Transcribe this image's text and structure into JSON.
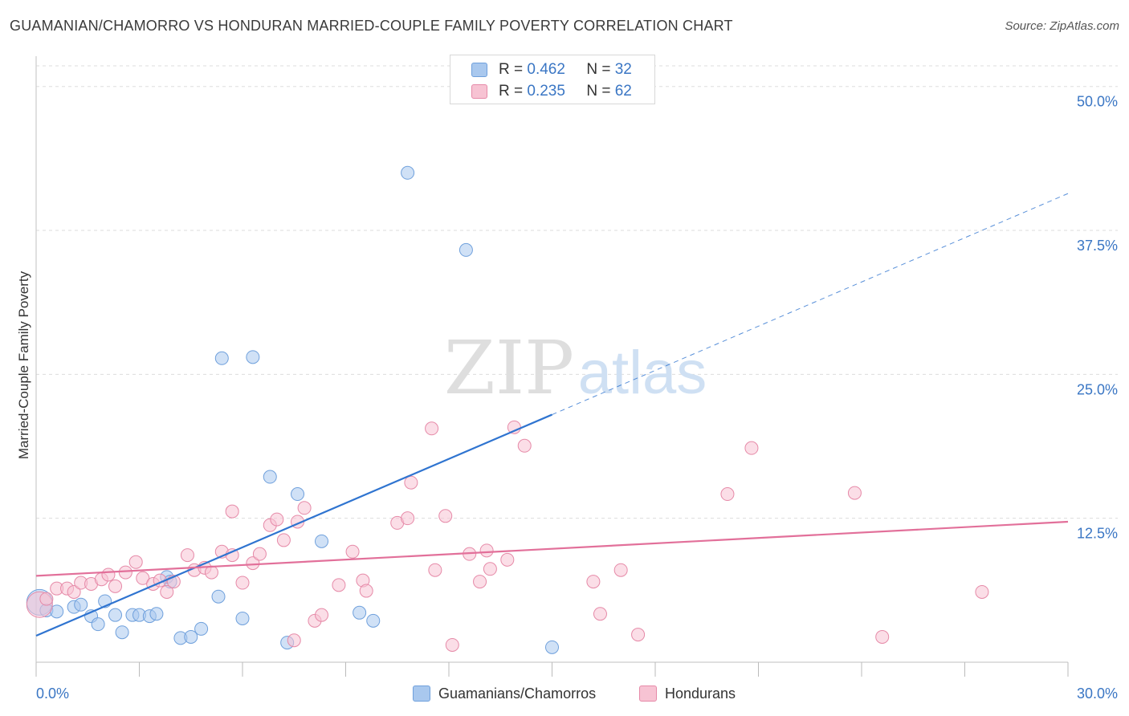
{
  "title": "GUAMANIAN/CHAMORRO VS HONDURAN MARRIED-COUPLE FAMILY POVERTY CORRELATION CHART",
  "source": "Source: ZipAtlas.com",
  "watermark": {
    "zip": "ZIP",
    "atlas": "atlas"
  },
  "stats": {
    "r_label": "R =",
    "n_label": "N =",
    "rows": [
      {
        "r": "0.462",
        "n": "32",
        "color": "#a9c8ee",
        "border": "#6fa0dc"
      },
      {
        "r": "0.235",
        "n": "62",
        "color": "#f7c3d3",
        "border": "#e68aa8"
      }
    ]
  },
  "legend": [
    {
      "label": "Guamanians/Chamorros",
      "color": "#a9c8ee",
      "border": "#6fa0dc"
    },
    {
      "label": "Hondurans",
      "color": "#f7c3d3",
      "border": "#e68aa8"
    }
  ],
  "chart_data": {
    "type": "scatter",
    "title": "GUAMANIAN/CHAMORRO VS HONDURAN MARRIED-COUPLE FAMILY POVERTY CORRELATION CHART",
    "xlabel": "",
    "ylabel": "Married-Couple Family Poverty",
    "xlim": [
      0,
      30
    ],
    "ylim": [
      0,
      52
    ],
    "x_tick_labels": [
      "0.0%",
      "30.0%"
    ],
    "y_ticks": [
      12.5,
      25.0,
      37.5,
      50.0
    ],
    "y_tick_labels": [
      "12.5%",
      "25.0%",
      "37.5%",
      "50.0%"
    ],
    "grid": true,
    "legend_position": "bottom-center",
    "series": [
      {
        "name": "Guamanians/Chamorros",
        "color": "#a9c8ee",
        "stroke": "#6fa0dc",
        "line_color": "#2f74d0",
        "trend": {
          "x0": 0,
          "y0": 2.3,
          "x1": 30,
          "y1": 40.7,
          "solid_until": 15.0
        },
        "points": [
          {
            "x": 0.1,
            "y": 5.2,
            "r": 16
          },
          {
            "x": 0.3,
            "y": 4.5
          },
          {
            "x": 0.6,
            "y": 4.4
          },
          {
            "x": 1.1,
            "y": 4.8
          },
          {
            "x": 1.3,
            "y": 5.0
          },
          {
            "x": 1.6,
            "y": 4.0
          },
          {
            "x": 1.8,
            "y": 3.3
          },
          {
            "x": 2.0,
            "y": 5.3
          },
          {
            "x": 2.3,
            "y": 4.1
          },
          {
            "x": 2.5,
            "y": 2.6
          },
          {
            "x": 2.8,
            "y": 4.1
          },
          {
            "x": 3.0,
            "y": 4.1
          },
          {
            "x": 3.3,
            "y": 4.0
          },
          {
            "x": 3.5,
            "y": 4.2
          },
          {
            "x": 3.8,
            "y": 7.4
          },
          {
            "x": 4.2,
            "y": 2.1
          },
          {
            "x": 4.5,
            "y": 2.2
          },
          {
            "x": 4.8,
            "y": 2.9
          },
          {
            "x": 5.3,
            "y": 5.7
          },
          {
            "x": 5.4,
            "y": 26.4
          },
          {
            "x": 6.0,
            "y": 3.8
          },
          {
            "x": 6.3,
            "y": 26.5
          },
          {
            "x": 6.8,
            "y": 16.1
          },
          {
            "x": 7.3,
            "y": 1.7
          },
          {
            "x": 7.6,
            "y": 14.6
          },
          {
            "x": 8.3,
            "y": 10.5
          },
          {
            "x": 9.4,
            "y": 4.3
          },
          {
            "x": 9.8,
            "y": 3.6
          },
          {
            "x": 10.8,
            "y": 42.5
          },
          {
            "x": 12.5,
            "y": 35.8
          },
          {
            "x": 15.0,
            "y": 1.3
          },
          {
            "x": 3.9,
            "y": 7.0
          }
        ]
      },
      {
        "name": "Hondurans",
        "color": "#f7c3d3",
        "stroke": "#e68aa8",
        "line_color": "#e2709a",
        "trend": {
          "x0": 0,
          "y0": 7.5,
          "x1": 30,
          "y1": 12.2,
          "solid_until": 30
        },
        "points": [
          {
            "x": 0.1,
            "y": 5.0,
            "r": 16
          },
          {
            "x": 0.3,
            "y": 5.5
          },
          {
            "x": 0.6,
            "y": 6.4
          },
          {
            "x": 0.9,
            "y": 6.4
          },
          {
            "x": 1.1,
            "y": 6.1
          },
          {
            "x": 1.3,
            "y": 6.9
          },
          {
            "x": 1.6,
            "y": 6.8
          },
          {
            "x": 1.9,
            "y": 7.2
          },
          {
            "x": 2.1,
            "y": 7.6
          },
          {
            "x": 2.3,
            "y": 6.6
          },
          {
            "x": 2.6,
            "y": 7.8
          },
          {
            "x": 2.9,
            "y": 8.7
          },
          {
            "x": 3.1,
            "y": 7.3
          },
          {
            "x": 3.4,
            "y": 6.8
          },
          {
            "x": 3.6,
            "y": 7.1
          },
          {
            "x": 3.8,
            "y": 6.1
          },
          {
            "x": 4.0,
            "y": 7.0
          },
          {
            "x": 4.4,
            "y": 9.3
          },
          {
            "x": 4.6,
            "y": 8.0
          },
          {
            "x": 4.9,
            "y": 8.2
          },
          {
            "x": 5.1,
            "y": 7.8
          },
          {
            "x": 5.4,
            "y": 9.6
          },
          {
            "x": 5.7,
            "y": 9.3
          },
          {
            "x": 5.7,
            "y": 13.1
          },
          {
            "x": 6.0,
            "y": 6.9
          },
          {
            "x": 6.3,
            "y": 8.6
          },
          {
            "x": 6.5,
            "y": 9.4
          },
          {
            "x": 6.8,
            "y": 11.9
          },
          {
            "x": 7.0,
            "y": 12.4
          },
          {
            "x": 7.2,
            "y": 10.6
          },
          {
            "x": 7.5,
            "y": 1.9
          },
          {
            "x": 7.6,
            "y": 12.2
          },
          {
            "x": 7.8,
            "y": 13.4
          },
          {
            "x": 8.1,
            "y": 3.6
          },
          {
            "x": 8.3,
            "y": 4.1
          },
          {
            "x": 8.8,
            "y": 6.7
          },
          {
            "x": 9.2,
            "y": 9.6
          },
          {
            "x": 9.5,
            "y": 7.1
          },
          {
            "x": 9.6,
            "y": 6.2
          },
          {
            "x": 10.5,
            "y": 12.1
          },
          {
            "x": 10.8,
            "y": 12.5
          },
          {
            "x": 10.9,
            "y": 15.6
          },
          {
            "x": 11.5,
            "y": 20.3
          },
          {
            "x": 11.6,
            "y": 8.0
          },
          {
            "x": 11.9,
            "y": 12.7
          },
          {
            "x": 12.1,
            "y": 1.5
          },
          {
            "x": 12.6,
            "y": 9.4
          },
          {
            "x": 12.9,
            "y": 7.0
          },
          {
            "x": 13.1,
            "y": 9.7
          },
          {
            "x": 13.2,
            "y": 8.1
          },
          {
            "x": 13.7,
            "y": 8.9
          },
          {
            "x": 13.9,
            "y": 20.4
          },
          {
            "x": 14.2,
            "y": 18.8
          },
          {
            "x": 16.2,
            "y": 7.0
          },
          {
            "x": 16.4,
            "y": 4.2
          },
          {
            "x": 17.0,
            "y": 8.0
          },
          {
            "x": 17.5,
            "y": 2.4
          },
          {
            "x": 20.1,
            "y": 14.6
          },
          {
            "x": 20.8,
            "y": 18.6
          },
          {
            "x": 23.8,
            "y": 14.7
          },
          {
            "x": 24.6,
            "y": 2.2
          },
          {
            "x": 27.5,
            "y": 6.1
          }
        ]
      }
    ]
  }
}
